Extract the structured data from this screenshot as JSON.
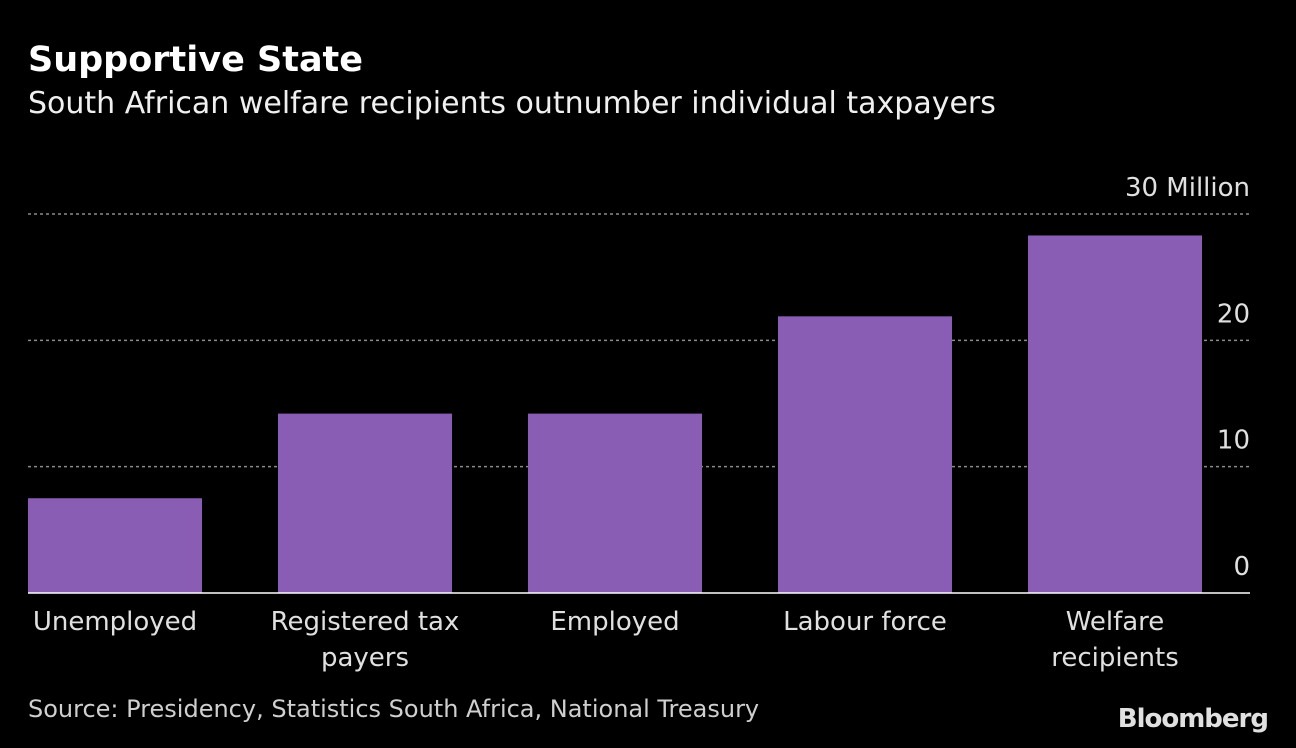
{
  "chart_data": {
    "type": "bar",
    "title": "Supportive State",
    "subtitle": "South African welfare recipients outnumber individual taxpayers",
    "categories": [
      "Unemployed",
      "Registered tax payers",
      "Employed",
      "Labour force",
      "Welfare recipients"
    ],
    "values": [
      7.5,
      14.2,
      14.2,
      21.9,
      28.3
    ],
    "color": "#8a5db5",
    "ylim": [
      0,
      30
    ],
    "yticks": [
      0,
      10,
      20,
      {
        "value": 30,
        "label": "30 Million"
      }
    ],
    "grid": true,
    "source": "Source: Presidency, Statistics South Africa, National Treasury",
    "logo": "Bloomberg"
  }
}
